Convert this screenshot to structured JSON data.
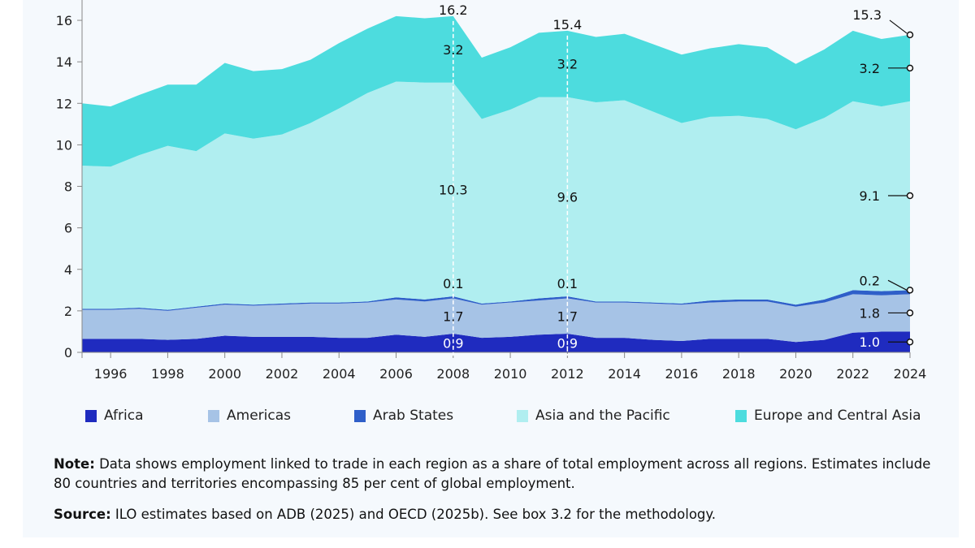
{
  "chart_data": {
    "type": "area",
    "stacked": true,
    "title": "",
    "xlabel": "",
    "ylabel": "",
    "x": [
      1995,
      1996,
      1997,
      1998,
      1999,
      2000,
      2001,
      2002,
      2003,
      2004,
      2005,
      2006,
      2007,
      2008,
      2009,
      2010,
      2011,
      2012,
      2013,
      2014,
      2015,
      2016,
      2017,
      2018,
      2019,
      2020,
      2021,
      2022,
      2023,
      2024
    ],
    "xlim": [
      1995,
      2024
    ],
    "ylim": [
      0,
      16.5
    ],
    "x_ticks": [
      "1996",
      "1998",
      "2000",
      "2002",
      "2004",
      "2006",
      "2008",
      "2010",
      "2012",
      "2014",
      "2016",
      "2018",
      "2020",
      "2022",
      "2024"
    ],
    "y_ticks": [
      "0",
      "2",
      "4",
      "6",
      "8",
      "10",
      "12",
      "14",
      "16"
    ],
    "grid": false,
    "legend_position": "bottom",
    "series": [
      {
        "name": "Africa",
        "color": "#1f2bbf",
        "values": [
          0.65,
          0.65,
          0.65,
          0.6,
          0.65,
          0.8,
          0.75,
          0.75,
          0.75,
          0.7,
          0.7,
          0.85,
          0.75,
          0.9,
          0.7,
          0.75,
          0.85,
          0.9,
          0.7,
          0.7,
          0.6,
          0.55,
          0.65,
          0.65,
          0.65,
          0.5,
          0.6,
          0.95,
          1.0,
          1.0
        ]
      },
      {
        "name": "Americas",
        "color": "#a6c3e6",
        "values": [
          1.4,
          1.4,
          1.45,
          1.4,
          1.5,
          1.5,
          1.5,
          1.55,
          1.6,
          1.65,
          1.7,
          1.7,
          1.7,
          1.7,
          1.6,
          1.65,
          1.65,
          1.7,
          1.7,
          1.7,
          1.75,
          1.75,
          1.75,
          1.8,
          1.8,
          1.7,
          1.8,
          1.85,
          1.75,
          1.8
        ]
      },
      {
        "name": "Arab States",
        "color": "#2f5fc9",
        "values": [
          0.05,
          0.05,
          0.05,
          0.05,
          0.05,
          0.05,
          0.05,
          0.05,
          0.05,
          0.05,
          0.05,
          0.1,
          0.1,
          0.1,
          0.05,
          0.05,
          0.1,
          0.1,
          0.05,
          0.05,
          0.05,
          0.05,
          0.1,
          0.1,
          0.1,
          0.1,
          0.15,
          0.2,
          0.2,
          0.2
        ]
      },
      {
        "name": "Asia and the Pacific",
        "color": "#b0eef0",
        "values": [
          6.9,
          6.85,
          7.35,
          7.9,
          7.5,
          8.2,
          8.0,
          8.15,
          8.65,
          9.35,
          10.05,
          10.4,
          10.45,
          10.3,
          8.9,
          9.25,
          9.7,
          9.6,
          9.6,
          9.7,
          9.2,
          8.7,
          8.85,
          8.85,
          8.7,
          8.45,
          8.75,
          9.1,
          8.9,
          9.1
        ]
      },
      {
        "name": "Europe and Central Asia",
        "color": "#4ddcde",
        "values": [
          3.0,
          2.9,
          2.9,
          2.95,
          3.2,
          3.4,
          3.25,
          3.15,
          3.05,
          3.15,
          3.1,
          3.15,
          3.1,
          3.2,
          2.95,
          3.0,
          3.1,
          3.2,
          3.15,
          3.2,
          3.25,
          3.3,
          3.3,
          3.45,
          3.45,
          3.15,
          3.3,
          3.4,
          3.25,
          3.2
        ]
      }
    ],
    "annotations": [
      {
        "year": 2008,
        "total": "16.2",
        "labels": [
          "0.9",
          "1.7",
          "0.1",
          "10.3",
          "3.2"
        ]
      },
      {
        "year": 2012,
        "total": "15.4",
        "labels": [
          "0.9",
          "1.7",
          "0.1",
          "9.6",
          "3.2"
        ]
      },
      {
        "year": 2024,
        "total": "15.3",
        "labels": [
          "1.0",
          "1.8",
          "0.2",
          "9.1",
          "3.2"
        ]
      }
    ]
  },
  "legend": [
    "Africa",
    "Americas",
    "Arab States",
    "Asia and the Pacific",
    "Europe and Central Asia"
  ],
  "note": {
    "note_label": "Note:",
    "note_text": " Data shows employment linked to trade in each region as a share of total employment across all regions. Estimates include 80 countries and territories encompassing 85 per cent of global employment.",
    "source_label": "Source:",
    "source_text": " ILO estimates based on ADB (2025) and OECD (2025b). See box 3.2 for the methodology."
  }
}
